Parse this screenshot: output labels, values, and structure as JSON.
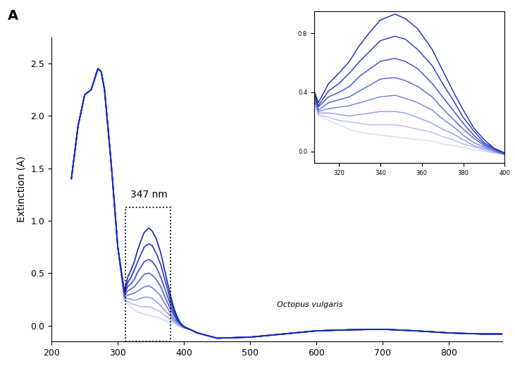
{
  "chart_data": {
    "type": "line",
    "panel_label": "A",
    "ylabel": "Extinction (A)",
    "x": [
      230,
      240,
      250,
      260,
      265,
      270,
      275,
      280,
      290,
      300,
      310,
      315,
      320,
      325,
      330,
      335,
      340,
      347,
      352,
      358,
      365,
      370,
      375,
      380,
      385,
      390,
      395,
      400,
      410,
      420,
      450,
      500,
      550,
      600,
      650,
      700,
      750,
      800,
      850,
      880
    ],
    "series": [
      {
        "color": "#d6daf5",
        "values": [
          1.4,
          1.9,
          2.2,
          2.25,
          2.35,
          2.45,
          2.42,
          2.25,
          1.55,
          0.75,
          0.24,
          0.21,
          0.18,
          0.15,
          0.13,
          0.12,
          0.11,
          0.1,
          0.09,
          0.08,
          0.07,
          0.05,
          0.04,
          0.03,
          0.01,
          0.0,
          -0.01,
          -0.02,
          -0.04,
          -0.07,
          -0.12,
          -0.11,
          -0.08,
          -0.05,
          -0.04,
          -0.035,
          -0.05,
          -0.07,
          -0.08,
          -0.08
        ]
      },
      {
        "color": "#b4bbee",
        "values": [
          1.4,
          1.9,
          2.2,
          2.25,
          2.35,
          2.45,
          2.42,
          2.25,
          1.55,
          0.75,
          0.25,
          0.23,
          0.21,
          0.2,
          0.19,
          0.18,
          0.18,
          0.18,
          0.17,
          0.15,
          0.13,
          0.1,
          0.08,
          0.05,
          0.03,
          0.01,
          -0.01,
          -0.02,
          -0.04,
          -0.07,
          -0.12,
          -0.11,
          -0.08,
          -0.05,
          -0.04,
          -0.035,
          -0.05,
          -0.07,
          -0.08,
          -0.08
        ]
      },
      {
        "color": "#929ce6",
        "values": [
          1.4,
          1.9,
          2.2,
          2.25,
          2.35,
          2.45,
          2.42,
          2.25,
          1.55,
          0.75,
          0.26,
          0.26,
          0.25,
          0.24,
          0.25,
          0.26,
          0.27,
          0.27,
          0.26,
          0.23,
          0.19,
          0.15,
          0.12,
          0.08,
          0.04,
          0.02,
          0.0,
          -0.02,
          -0.04,
          -0.07,
          -0.12,
          -0.11,
          -0.08,
          -0.05,
          -0.04,
          -0.035,
          -0.05,
          -0.07,
          -0.08,
          -0.08
        ]
      },
      {
        "color": "#707ddd",
        "values": [
          1.4,
          1.9,
          2.2,
          2.25,
          2.35,
          2.45,
          2.42,
          2.25,
          1.55,
          0.75,
          0.27,
          0.29,
          0.3,
          0.31,
          0.33,
          0.35,
          0.37,
          0.38,
          0.36,
          0.33,
          0.28,
          0.22,
          0.17,
          0.11,
          0.06,
          0.03,
          0.0,
          -0.02,
          -0.04,
          -0.07,
          -0.12,
          -0.11,
          -0.08,
          -0.05,
          -0.04,
          -0.035,
          -0.05,
          -0.07,
          -0.08,
          -0.08
        ]
      },
      {
        "color": "#525fd4",
        "values": [
          1.4,
          1.9,
          2.2,
          2.25,
          2.35,
          2.45,
          2.42,
          2.25,
          1.55,
          0.75,
          0.28,
          0.33,
          0.35,
          0.37,
          0.41,
          0.45,
          0.49,
          0.5,
          0.48,
          0.44,
          0.37,
          0.29,
          0.22,
          0.15,
          0.09,
          0.04,
          0.01,
          -0.02,
          -0.04,
          -0.07,
          -0.12,
          -0.11,
          -0.08,
          -0.05,
          -0.04,
          -0.035,
          -0.05,
          -0.07,
          -0.08,
          -0.08
        ]
      },
      {
        "color": "#3a48c9",
        "values": [
          1.4,
          1.9,
          2.2,
          2.25,
          2.35,
          2.45,
          2.42,
          2.25,
          1.55,
          0.75,
          0.3,
          0.37,
          0.4,
          0.44,
          0.51,
          0.56,
          0.61,
          0.63,
          0.61,
          0.56,
          0.46,
          0.37,
          0.28,
          0.19,
          0.11,
          0.05,
          0.01,
          -0.01,
          -0.04,
          -0.07,
          -0.12,
          -0.11,
          -0.08,
          -0.05,
          -0.04,
          -0.035,
          -0.05,
          -0.07,
          -0.08,
          -0.08
        ]
      },
      {
        "color": "#2535bd",
        "values": [
          1.4,
          1.9,
          2.2,
          2.25,
          2.35,
          2.45,
          2.42,
          2.25,
          1.55,
          0.75,
          0.31,
          0.41,
          0.46,
          0.53,
          0.61,
          0.68,
          0.75,
          0.78,
          0.76,
          0.69,
          0.58,
          0.46,
          0.35,
          0.23,
          0.14,
          0.06,
          0.02,
          -0.01,
          -0.04,
          -0.07,
          -0.12,
          -0.11,
          -0.08,
          -0.05,
          -0.04,
          -0.035,
          -0.05,
          -0.07,
          -0.08,
          -0.08
        ]
      },
      {
        "color": "#1428b0",
        "values": [
          1.4,
          1.9,
          2.2,
          2.25,
          2.35,
          2.45,
          2.42,
          2.25,
          1.55,
          0.75,
          0.33,
          0.46,
          0.53,
          0.61,
          0.72,
          0.81,
          0.89,
          0.93,
          0.9,
          0.83,
          0.69,
          0.55,
          0.41,
          0.28,
          0.16,
          0.08,
          0.02,
          -0.01,
          -0.04,
          -0.07,
          -0.12,
          -0.11,
          -0.08,
          -0.05,
          -0.04,
          -0.035,
          -0.05,
          -0.07,
          -0.08,
          -0.08
        ]
      }
    ],
    "xlim": [
      200,
      880
    ],
    "ylim": [
      -0.15,
      2.75
    ],
    "xticks": [
      200,
      300,
      400,
      500,
      600,
      700,
      800
    ],
    "yticks": [
      {
        "value": 0.0,
        "label": "0.0"
      },
      {
        "value": 0.5,
        "label": "0.5"
      },
      {
        "value": 1.0,
        "label": "1.0"
      },
      {
        "value": 1.5,
        "label": "1.5"
      },
      {
        "value": 2.0,
        "label": "2.0"
      },
      {
        "value": 2.5,
        "label": "2.5"
      }
    ],
    "highlight_box": {
      "x": [
        312,
        380
      ],
      "y": [
        -0.15,
        1.13
      ]
    },
    "annotations": [
      {
        "text": "347 nm",
        "x": 347,
        "y": 1.2
      }
    ],
    "caption": {
      "text": "Octopus vulgaris",
      "x": 590,
      "y": 0.2
    },
    "inset": {
      "xlim": [
        308,
        400
      ],
      "ylim": [
        -0.08,
        0.95
      ],
      "xticks": [
        320,
        340,
        360,
        380,
        400
      ],
      "yticks": [
        {
          "value": 0.0,
          "label": "0.0"
        },
        {
          "value": 0.4,
          "label": "0.4"
        },
        {
          "value": 0.8,
          "label": "0.8"
        }
      ]
    }
  }
}
